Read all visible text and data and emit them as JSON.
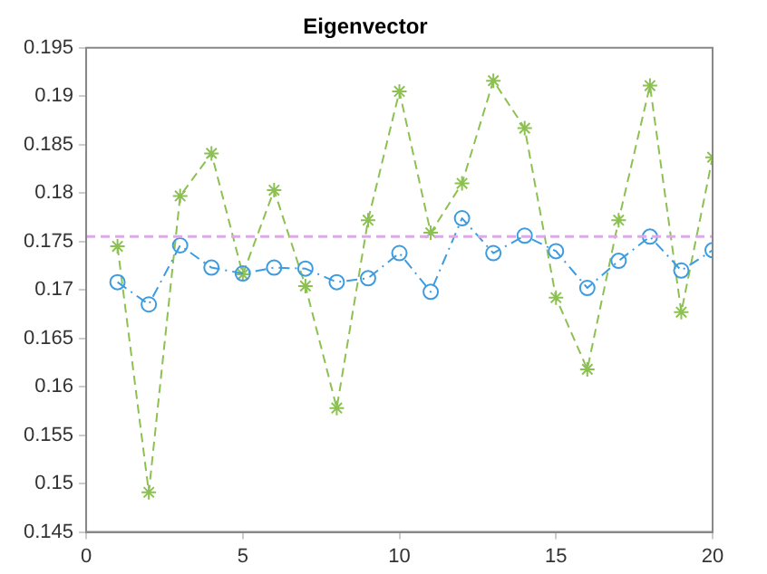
{
  "chart_data": {
    "type": "line",
    "title": "Eigenvector",
    "x": [
      1,
      2,
      3,
      4,
      5,
      6,
      7,
      8,
      9,
      10,
      11,
      12,
      13,
      14,
      15,
      16,
      17,
      18,
      19,
      20
    ],
    "series": [
      {
        "color": "#3d9be0",
        "marker": "circle",
        "line_style": "dashdot",
        "values": [
          0.1708,
          0.1685,
          0.1746,
          0.1723,
          0.1717,
          0.1723,
          0.1722,
          0.1708,
          0.1712,
          0.1738,
          0.1698,
          0.1774,
          0.1738,
          0.1756,
          0.174,
          0.1702,
          0.173,
          0.1755,
          0.172,
          0.1741
        ]
      },
      {
        "color": "#8cc152",
        "marker": "cross",
        "line_style": "dashed",
        "values": [
          0.1745,
          0.1491,
          0.1797,
          0.1841,
          0.1716,
          0.1803,
          0.1704,
          0.1578,
          0.1772,
          0.1905,
          0.1759,
          0.181,
          0.1916,
          0.1867,
          0.1692,
          0.1618,
          0.1772,
          0.1911,
          0.1677,
          0.1837
        ]
      }
    ],
    "ref_lines": [
      {
        "axis": "y",
        "value": 0.1755,
        "color": "#dcaae6",
        "line_style": "dashed"
      }
    ],
    "xlim": [
      0,
      20
    ],
    "xticks": [
      0,
      5,
      10,
      15,
      20
    ],
    "ylim": [
      0.145,
      0.195
    ],
    "yticks": [
      0.145,
      0.15,
      0.155,
      0.16,
      0.165,
      0.17,
      0.175,
      0.18,
      0.185,
      0.19,
      0.195
    ],
    "grid": false,
    "legend": false
  }
}
